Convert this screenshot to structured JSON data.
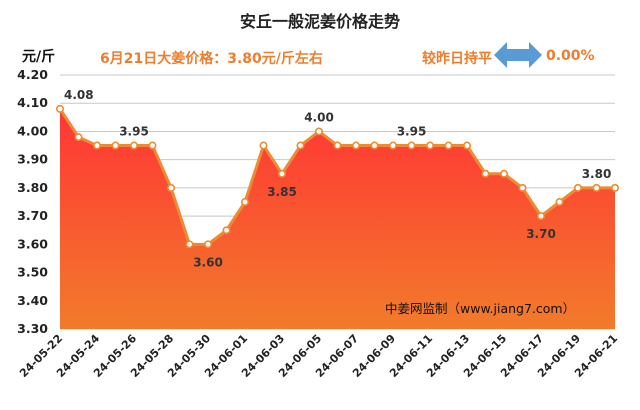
{
  "chart_data": {
    "type": "area",
    "title": "安丘一般泥姜价格走势",
    "ylabel": "元/斤",
    "ylim": [
      3.3,
      4.2
    ],
    "yticks": [
      "4.20",
      "4.10",
      "4.00",
      "3.90",
      "3.80",
      "3.70",
      "3.60",
      "3.50",
      "3.40",
      "3.30"
    ],
    "grid": true,
    "x": [
      "24-05-22",
      "24-05-23",
      "24-05-24",
      "24-05-25",
      "24-05-26",
      "24-05-27",
      "24-05-28",
      "24-05-29",
      "24-05-30",
      "24-05-31",
      "24-06-01",
      "24-06-02",
      "24-06-03",
      "24-06-04",
      "24-06-05",
      "24-06-06",
      "24-06-07",
      "24-06-08",
      "24-06-09",
      "24-06-10",
      "24-06-11",
      "24-06-12",
      "24-06-13",
      "24-06-14",
      "24-06-15",
      "24-06-16",
      "24-06-17",
      "24-06-18",
      "24-06-19",
      "24-06-20",
      "24-06-21"
    ],
    "xtick_labels": [
      "24-05-22",
      "24-05-24",
      "24-05-26",
      "24-05-28",
      "24-05-30",
      "24-06-01",
      "24-06-03",
      "24-06-05",
      "24-06-07",
      "24-06-09",
      "24-06-11",
      "24-06-13",
      "24-06-15",
      "24-06-17",
      "24-06-19",
      "24-06-21"
    ],
    "values": [
      4.08,
      3.98,
      3.95,
      3.95,
      3.95,
      3.95,
      3.8,
      3.6,
      3.6,
      3.65,
      3.75,
      3.95,
      3.85,
      3.95,
      4.0,
      3.95,
      3.95,
      3.95,
      3.95,
      3.95,
      3.95,
      3.95,
      3.95,
      3.85,
      3.85,
      3.8,
      3.7,
      3.75,
      3.8,
      3.8,
      3.8
    ],
    "data_labels": [
      {
        "index": 0,
        "text": "4.08"
      },
      {
        "index": 4,
        "text": "3.95"
      },
      {
        "index": 8,
        "text": "3.60"
      },
      {
        "index": 12,
        "text": "3.85"
      },
      {
        "index": 14,
        "text": "4.00"
      },
      {
        "index": 19,
        "text": "3.95"
      },
      {
        "index": 26,
        "text": "3.70"
      },
      {
        "index": 29,
        "text": "3.80"
      }
    ],
    "colors": {
      "line": "#ef8a32",
      "area_top": "#ff3b3b",
      "area_bottom": "#f07a2a",
      "grid": "#c8c8c8"
    }
  },
  "header": {
    "unit": "元/斤",
    "price_text": "6月21日大姜价格：3.80元/斤左右",
    "compare_text": "较昨日持平",
    "change_pct": "0.00%",
    "arrow_icon": "double-arrow-icon"
  },
  "watermark": "中姜网监制（www.jiang7.com）"
}
